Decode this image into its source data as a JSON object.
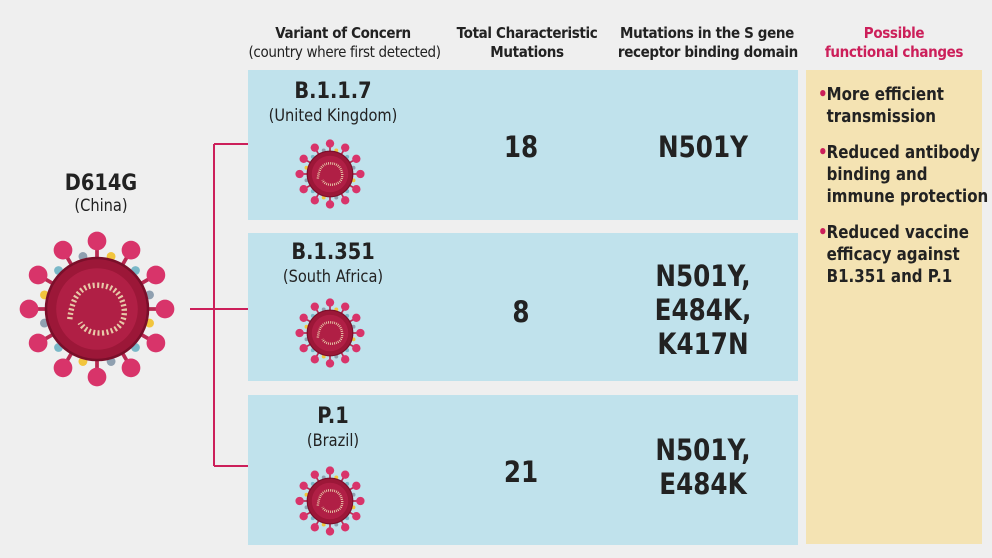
{
  "headers": {
    "variant_title": "Variant of Concern",
    "variant_sub": "(country where first detected)",
    "total_line1": "Total Characteristic",
    "total_line2": "Mutations",
    "muts_line1": "Mutations in the S gene",
    "muts_line2": "receptor binding domain",
    "func_line1": "Possible",
    "func_line2": "functional changes"
  },
  "original": {
    "name": "D614G",
    "country": "(China)"
  },
  "variants": [
    {
      "name": "B.1.1.7",
      "country": "(United Kingdom)",
      "count": "18",
      "mutations": "N501Y"
    },
    {
      "name": "B.1.351",
      "country": "(South Africa)",
      "count": "8",
      "mutations": "N501Y,\nE484K,\nK417N"
    },
    {
      "name": "P.1",
      "country": "(Brazil)",
      "count": "21",
      "mutations": "N501Y,\nE484K"
    }
  ],
  "functional_changes": [
    "More efficient transmission",
    "Reduced antibody binding and immune protection",
    "Reduced vaccine efficacy against B1.351 and P.1"
  ],
  "colors": {
    "accent": "#cc1f5a",
    "row_bg": "#c0e2ec",
    "panel_bg": "#f4e3b3",
    "virus_body": "#9c1738",
    "virus_spike": "#d8346a"
  }
}
